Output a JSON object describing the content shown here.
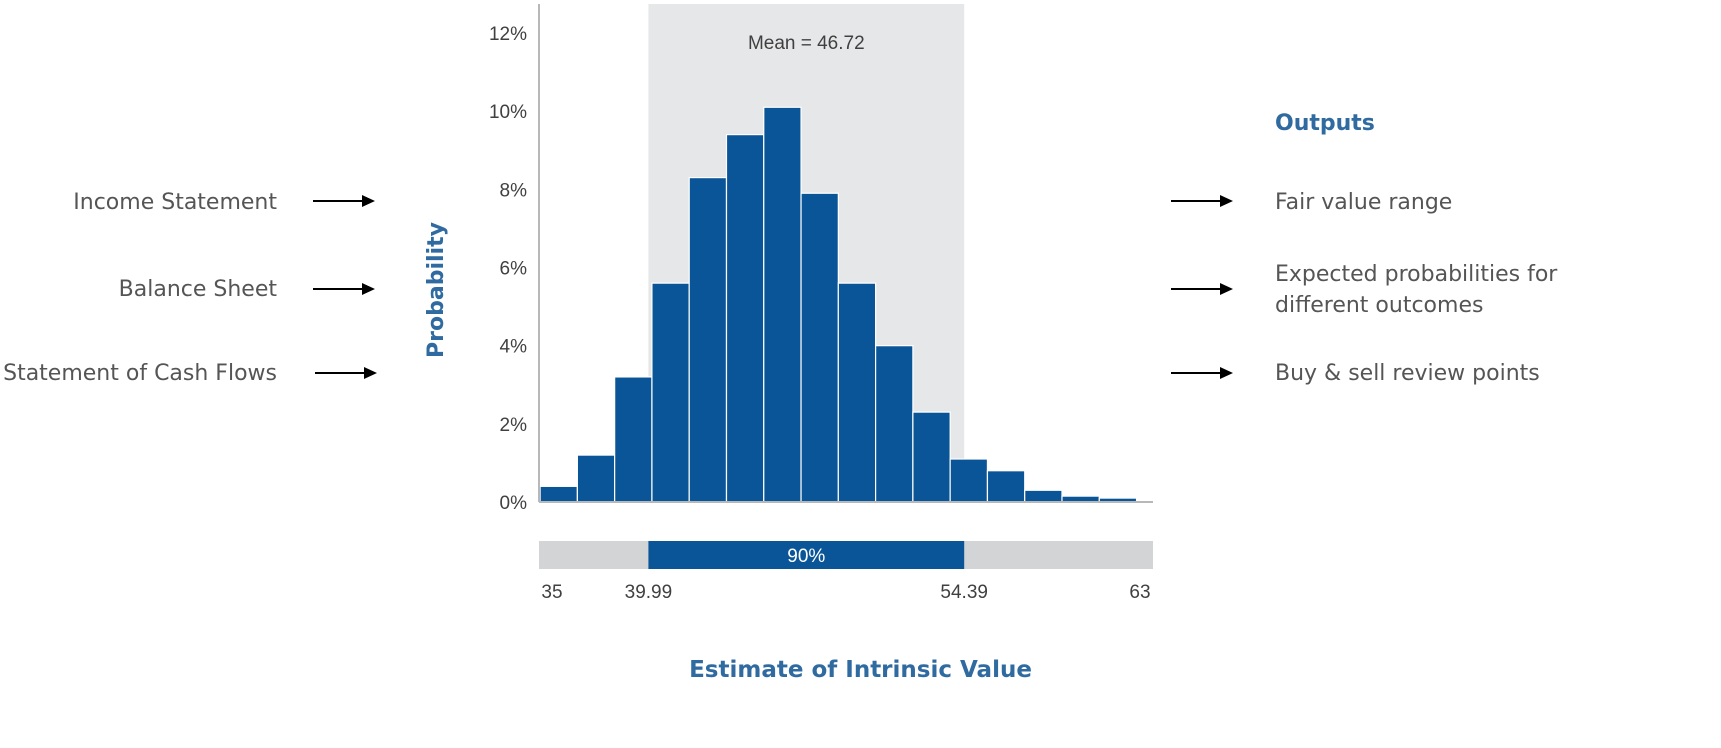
{
  "inputs": [
    {
      "label": "Income Statement"
    },
    {
      "label": "Balance Sheet"
    },
    {
      "label": "Statement of Cash Flows"
    }
  ],
  "outputs": {
    "heading": "Outputs",
    "items": [
      {
        "label": "Fair value range"
      },
      {
        "label": "Expected probabilities for different outcomes"
      },
      {
        "label": "Buy & sell review points"
      }
    ]
  },
  "colors": {
    "bar": "#0a5597",
    "shade": "#e6e7e8",
    "range_bg": "#d3d4d5",
    "axis": "#b8b8b8",
    "title_blue": "#2f6aa0",
    "text_gray": "#555555"
  },
  "chart_data": {
    "type": "bar",
    "title": "",
    "xlabel": "Estimate of Intrinsic Value",
    "ylabel": "Probability",
    "ylim": [
      0,
      12
    ],
    "yticks": [
      "0%",
      "2%",
      "4%",
      "6%",
      "8%",
      "10%",
      "12%"
    ],
    "xlim": [
      35,
      63
    ],
    "bin_width": 1.7,
    "bins": [
      {
        "x": 35.9,
        "value": 0.4
      },
      {
        "x": 37.6,
        "value": 1.2
      },
      {
        "x": 39.3,
        "value": 3.2
      },
      {
        "x": 41.0,
        "value": 5.6
      },
      {
        "x": 42.7,
        "value": 8.3
      },
      {
        "x": 44.4,
        "value": 9.4
      },
      {
        "x": 46.1,
        "value": 10.1
      },
      {
        "x": 47.8,
        "value": 7.9
      },
      {
        "x": 49.5,
        "value": 5.6
      },
      {
        "x": 51.2,
        "value": 4.0
      },
      {
        "x": 52.9,
        "value": 2.3
      },
      {
        "x": 54.6,
        "value": 1.1
      },
      {
        "x": 56.3,
        "value": 0.8
      },
      {
        "x": 58.0,
        "value": 0.3
      },
      {
        "x": 59.7,
        "value": 0.15
      },
      {
        "x": 61.4,
        "value": 0.1
      }
    ],
    "mean_label": "Mean = 46.72",
    "interval": {
      "low": 39.99,
      "high": 54.39,
      "label": "90%"
    },
    "range_labels": [
      "35",
      "39.99",
      "54.39",
      "63"
    ],
    "grid": false
  }
}
